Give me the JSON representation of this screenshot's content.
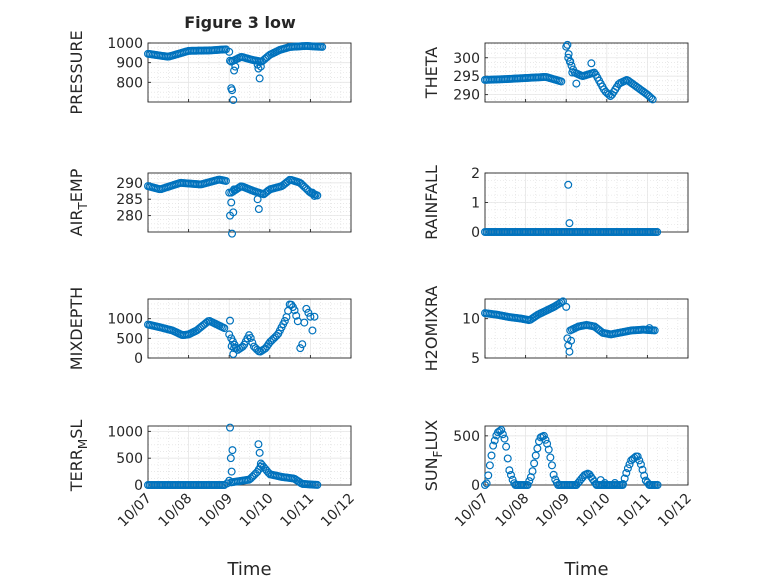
{
  "figure": {
    "title": "Figure 3 low"
  },
  "style": {
    "marker_color": "#0072BD",
    "axis_color": "#262626",
    "grid_color": "#dcdcdc"
  },
  "chart_data": [
    {
      "type": "scatter",
      "ylabel": "PRESSURE",
      "ylim": [
        700,
        1000
      ],
      "yticks": [
        800,
        900,
        1000
      ],
      "xlim": [
        0,
        5
      ],
      "xticks": [],
      "grid": true,
      "segments": [
        {
          "x": [
            0.0,
            0.5,
            1.0,
            1.5,
            1.95
          ],
          "y": [
            945,
            930,
            960,
            962,
            968
          ],
          "step": 0.04
        },
        {
          "x": [
            2.05,
            2.3,
            2.55,
            2.8,
            3.0,
            3.25,
            3.5,
            3.9,
            4.3
          ],
          "y": [
            905,
            930,
            915,
            905,
            940,
            965,
            980,
            985,
            980
          ],
          "step": 0.04
        }
      ],
      "extra_points": [
        [
          2.0,
          955
        ],
        [
          2.02,
          910
        ],
        [
          2.05,
          770
        ],
        [
          2.07,
          760
        ],
        [
          2.1,
          710
        ],
        [
          2.12,
          860
        ],
        [
          2.15,
          880
        ],
        [
          2.7,
          890
        ],
        [
          2.72,
          870
        ],
        [
          2.75,
          820
        ],
        [
          2.78,
          880
        ]
      ]
    },
    {
      "type": "scatter",
      "ylabel": "THETA",
      "ylim": [
        288,
        304
      ],
      "yticks": [
        290,
        295,
        300
      ],
      "xlim": [
        0,
        5
      ],
      "xticks": [],
      "grid": true,
      "segments": [
        {
          "x": [
            0.0,
            0.5,
            1.0,
            1.5,
            1.9
          ],
          "y": [
            294,
            294.2,
            294.5,
            294.8,
            293.5
          ],
          "step": 0.04
        },
        {
          "x": [
            2.05,
            2.2,
            2.4,
            2.7,
            2.95,
            3.1,
            3.3,
            3.5,
            3.75,
            4.0,
            4.15
          ],
          "y": [
            300,
            296,
            295,
            296,
            291,
            289.5,
            293,
            294,
            292,
            290,
            288.5
          ],
          "step": 0.04
        }
      ],
      "extra_points": [
        [
          2.0,
          303
        ],
        [
          2.03,
          303.5
        ],
        [
          2.06,
          301
        ],
        [
          2.1,
          299
        ],
        [
          2.15,
          296
        ],
        [
          2.25,
          293
        ],
        [
          2.62,
          298.5
        ]
      ]
    },
    {
      "type": "scatter",
      "ylabel": "AIR_TEMP",
      "ylim": [
        275,
        293
      ],
      "yticks": [
        280,
        285,
        290
      ],
      "xlim": [
        0,
        5
      ],
      "xticks": [],
      "grid": true,
      "segments": [
        {
          "x": [
            0.0,
            0.3,
            0.8,
            1.3,
            1.75,
            1.95
          ],
          "y": [
            289,
            288,
            290,
            289.5,
            291,
            290.5
          ],
          "step": 0.04
        },
        {
          "x": [
            2.05,
            2.3,
            2.6,
            2.85,
            3.0,
            3.3,
            3.5,
            3.75,
            4.0,
            4.2
          ],
          "y": [
            287,
            289,
            287.5,
            286.5,
            288,
            289,
            291,
            290,
            287,
            286
          ],
          "step": 0.04
        }
      ],
      "extra_points": [
        [
          2.0,
          287
        ],
        [
          2.02,
          280
        ],
        [
          2.05,
          284
        ],
        [
          2.07,
          274.5
        ],
        [
          2.1,
          281
        ],
        [
          2.12,
          288
        ],
        [
          2.7,
          285
        ],
        [
          2.73,
          282
        ],
        [
          4.05,
          287
        ],
        [
          4.1,
          286
        ]
      ]
    },
    {
      "type": "scatter",
      "ylabel": "RAINFALL",
      "ylim": [
        0,
        2
      ],
      "yticks": [
        0,
        1,
        2
      ],
      "xlim": [
        0,
        5
      ],
      "xticks": [],
      "grid": true,
      "segments": [
        {
          "x": [
            0.0,
            4.25
          ],
          "y": [
            0,
            0
          ],
          "step": 0.04
        }
      ],
      "extra_points": [
        [
          2.05,
          1.6
        ],
        [
          2.08,
          0.3
        ]
      ]
    },
    {
      "type": "scatter",
      "ylabel": "MIXDEPTH",
      "ylim": [
        0,
        1500
      ],
      "yticks": [
        0,
        500,
        1000
      ],
      "xlim": [
        0,
        5
      ],
      "xticks": [],
      "grid": true,
      "segments": [
        {
          "x": [
            0.0,
            0.3,
            0.6,
            0.85,
            1.0,
            1.2,
            1.5,
            1.7,
            1.9
          ],
          "y": [
            850,
            780,
            700,
            580,
            600,
            700,
            950,
            850,
            750
          ],
          "step": 0.04
        },
        {
          "x": [
            2.05,
            2.2,
            2.35,
            2.5,
            2.6,
            2.75,
            2.9,
            3.0,
            3.1,
            3.2,
            3.3,
            3.4,
            3.5,
            3.6,
            3.7
          ],
          "y": [
            500,
            200,
            300,
            600,
            300,
            150,
            250,
            400,
            500,
            600,
            800,
            1000,
            1400,
            1250,
            900
          ],
          "step": 0.04
        }
      ],
      "extra_points": [
        [
          2.0,
          600
        ],
        [
          2.02,
          950
        ],
        [
          2.06,
          300
        ],
        [
          2.1,
          100
        ],
        [
          2.12,
          250
        ],
        [
          3.75,
          250
        ],
        [
          3.8,
          350
        ],
        [
          3.85,
          900
        ],
        [
          3.9,
          1250
        ],
        [
          3.95,
          1150
        ],
        [
          4.0,
          1050
        ],
        [
          4.05,
          700
        ],
        [
          4.1,
          1050
        ]
      ]
    },
    {
      "type": "scatter",
      "ylabel": "H2OMIXRA",
      "ylim": [
        5,
        12.5
      ],
      "yticks": [
        5,
        10
      ],
      "xlim": [
        0,
        5
      ],
      "xticks": [],
      "grid": true,
      "segments": [
        {
          "x": [
            0.0,
            0.3,
            0.6,
            0.9,
            1.1,
            1.3,
            1.5,
            1.7,
            1.95
          ],
          "y": [
            10.7,
            10.5,
            10.2,
            10,
            9.8,
            10.5,
            11,
            11.5,
            12.3
          ],
          "step": 0.04
        },
        {
          "x": [
            2.1,
            2.3,
            2.5,
            2.7,
            2.9,
            3.1,
            3.3,
            3.6,
            3.9,
            4.2
          ],
          "y": [
            8.5,
            9.0,
            9.2,
            9.0,
            8.2,
            8.0,
            8.2,
            8.5,
            8.6,
            8.5
          ],
          "step": 0.04
        }
      ],
      "extra_points": [
        [
          2.0,
          11.5
        ],
        [
          2.03,
          7.5
        ],
        [
          2.05,
          6.6
        ],
        [
          2.08,
          5.8
        ],
        [
          2.12,
          7.2
        ],
        [
          4.05,
          8.8
        ]
      ]
    },
    {
      "type": "scatter",
      "ylabel": "TERR_MSL",
      "ylim": [
        0,
        1100
      ],
      "yticks": [
        0,
        500,
        1000
      ],
      "xlim": [
        0,
        5
      ],
      "xticks": [
        "10/07",
        "10/08",
        "10/09",
        "10/10",
        "10/11",
        "10/12"
      ],
      "xlabel": "Time",
      "grid": true,
      "segments": [
        {
          "x": [
            0.0,
            1.9
          ],
          "y": [
            0,
            0
          ],
          "step": 0.04
        },
        {
          "x": [
            2.05,
            2.5,
            2.7,
            2.8,
            3.0,
            3.3,
            3.6,
            3.8,
            4.2
          ],
          "y": [
            50,
            100,
            250,
            380,
            200,
            150,
            120,
            20,
            0
          ],
          "step": 0.04
        }
      ],
      "extra_points": [
        [
          1.95,
          30
        ],
        [
          2.0,
          80
        ],
        [
          2.02,
          1070
        ],
        [
          2.04,
          500
        ],
        [
          2.06,
          250
        ],
        [
          2.08,
          650
        ],
        [
          2.72,
          760
        ],
        [
          2.75,
          600
        ],
        [
          2.78,
          400
        ]
      ]
    },
    {
      "type": "scatter",
      "ylabel": "SUN_FLUX",
      "ylim": [
        0,
        600
      ],
      "yticks": [
        0,
        500
      ],
      "xlim": [
        0,
        5
      ],
      "xticks": [
        "10/07",
        "10/08",
        "10/09",
        "10/10",
        "10/11",
        "10/12"
      ],
      "xlabel": "Time",
      "grid": true,
      "segments": [
        {
          "x": [
            0.0,
            0.05,
            0.1,
            0.2,
            0.3,
            0.4,
            0.5,
            0.55,
            0.6,
            0.7,
            0.75
          ],
          "y": [
            0,
            20,
            150,
            400,
            530,
            560,
            450,
            300,
            150,
            30,
            0
          ],
          "step": 0.04
        },
        {
          "x": [
            0.75,
            1.05
          ],
          "y": [
            0,
            0
          ],
          "step": 0.04
        },
        {
          "x": [
            1.05,
            1.15,
            1.25,
            1.35,
            1.45,
            1.55,
            1.65,
            1.7,
            1.8
          ],
          "y": [
            0,
            100,
            300,
            480,
            500,
            400,
            200,
            80,
            0
          ],
          "step": 0.04
        },
        {
          "x": [
            1.8,
            2.25
          ],
          "y": [
            0,
            0
          ],
          "step": 0.04
        },
        {
          "x": [
            2.25,
            2.35,
            2.45,
            2.55,
            2.65,
            2.75
          ],
          "y": [
            0,
            50,
            100,
            120,
            60,
            0
          ],
          "step": 0.04
        },
        {
          "x": [
            2.75,
            3.4
          ],
          "y": [
            0,
            0
          ],
          "step": 0.04
        },
        {
          "x": [
            3.4,
            3.5,
            3.6,
            3.75,
            3.85,
            3.95,
            4.05
          ],
          "y": [
            10,
            150,
            250,
            300,
            200,
            50,
            0
          ],
          "step": 0.04
        },
        {
          "x": [
            4.05,
            4.25
          ],
          "y": [
            0,
            0
          ],
          "step": 0.04
        }
      ],
      "extra_points": [
        [
          2.85,
          50
        ],
        [
          2.95,
          20
        ],
        [
          3.2,
          20
        ]
      ]
    }
  ]
}
